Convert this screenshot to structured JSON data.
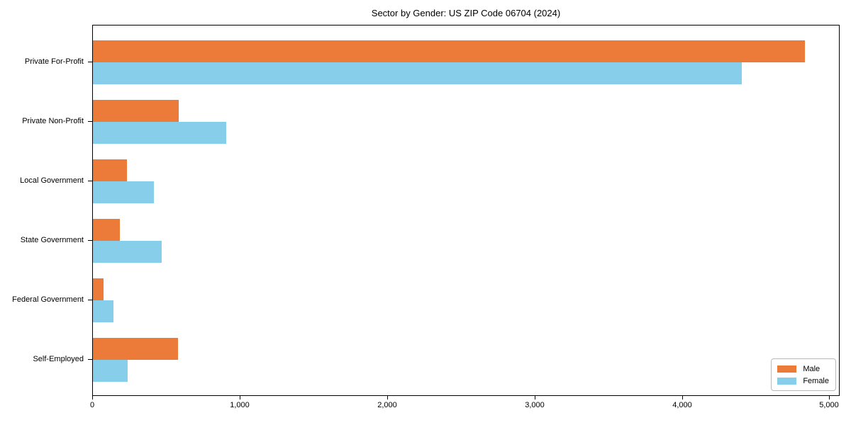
{
  "title": "Sector by Gender: US ZIP Code 06704 (2024)",
  "chart_data": {
    "type": "bar",
    "orientation": "horizontal",
    "title": "Sector by Gender: US ZIP Code 06704 (2024)",
    "categories": [
      "Private For-Profit",
      "Private Non-Profit",
      "Local Government",
      "State Government",
      "Federal Government",
      "Self-Employed"
    ],
    "series": [
      {
        "name": "Male",
        "color": "#EC7A38",
        "values": [
          4830,
          580,
          230,
          185,
          70,
          575
        ]
      },
      {
        "name": "Female",
        "color": "#87CEEB",
        "values": [
          4400,
          905,
          415,
          465,
          140,
          235
        ]
      }
    ],
    "xlabel": "",
    "ylabel": "",
    "xlim": [
      0,
      5070
    ],
    "xticks": [
      {
        "value": 0,
        "label": "0"
      },
      {
        "value": 1000,
        "label": "1,000"
      },
      {
        "value": 2000,
        "label": "2,000"
      },
      {
        "value": 3000,
        "label": "3,000"
      },
      {
        "value": 4000,
        "label": "4,000"
      },
      {
        "value": 5000,
        "label": "5,000"
      }
    ],
    "grid": false,
    "legend": {
      "position": "lower right",
      "entries": [
        "Male",
        "Female"
      ]
    }
  }
}
